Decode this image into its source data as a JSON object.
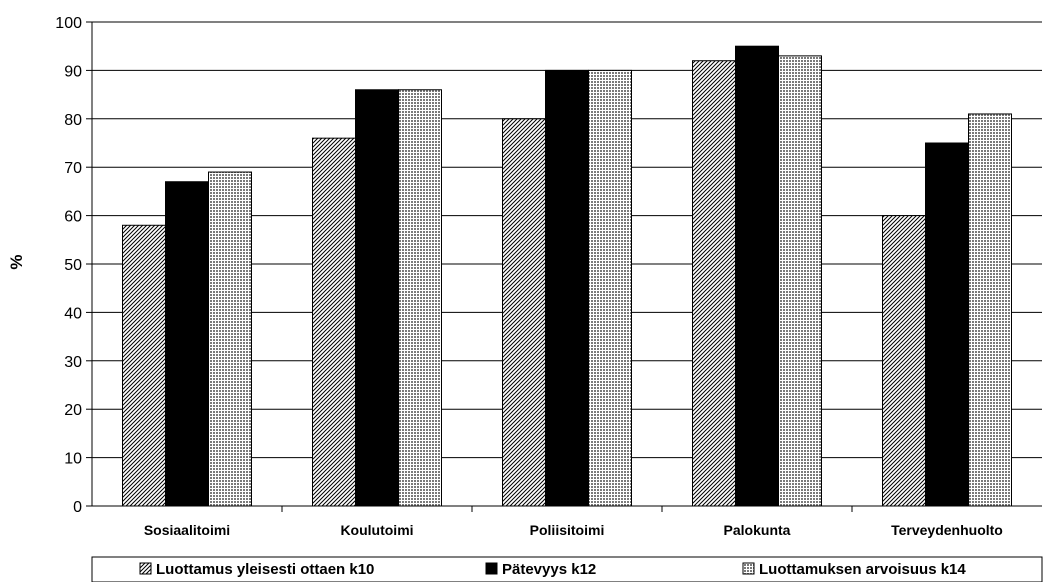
{
  "chart_data": {
    "type": "bar",
    "title": "",
    "xlabel": "",
    "ylabel": "%",
    "ylim": [
      0,
      100
    ],
    "ytick_step": 10,
    "grid": true,
    "legend_position": "bottom",
    "categories": [
      "Sosiaalitoimi",
      "Koulutoimi",
      "Poliisitoimi",
      "Palokunta",
      "Terveydenhuolto"
    ],
    "series": [
      {
        "name": "Luottamus yleisesti ottaen k10",
        "values": [
          58,
          76,
          80,
          92,
          60
        ],
        "fill": "diagonal-hatch"
      },
      {
        "name": "Pätevyys k12",
        "values": [
          67,
          86,
          90,
          95,
          75
        ],
        "fill": "solid-black"
      },
      {
        "name": "Luottamuksen arvoisuus k14",
        "values": [
          69,
          86,
          90,
          93,
          81
        ],
        "fill": "checker-gray"
      }
    ]
  }
}
